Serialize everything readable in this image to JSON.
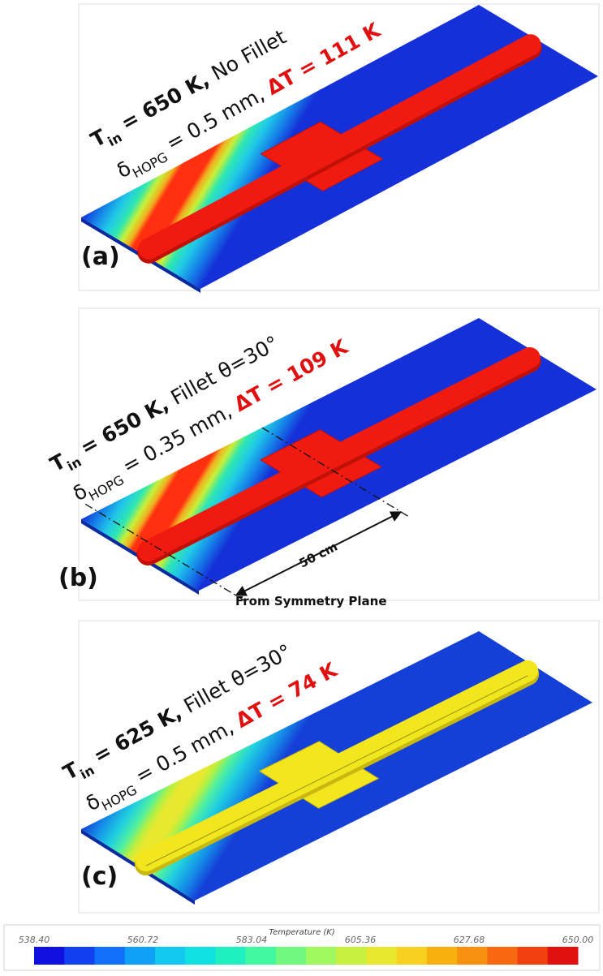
{
  "panels": [
    {
      "label": "(a)",
      "line1": {
        "t": "T",
        "t_sub": "in",
        "t_rest": " = 650 K,",
        "note": " No Fillet"
      },
      "line2": {
        "delta": "δ",
        "delta_sub": "HOPG",
        "thickness": " = 0.5 mm, ",
        "dt": "ΔT = 111 K"
      }
    },
    {
      "label": "(b)",
      "line1": {
        "t": "T",
        "t_sub": "in",
        "t_rest": " = 650 K,",
        "note": " Fillet θ=30°"
      },
      "line2": {
        "delta": "δ",
        "delta_sub": "HOPG",
        "thickness": " = 0.35 mm, ",
        "dt": "ΔT = 109 K"
      }
    },
    {
      "label": "(c)",
      "line1": {
        "t": "T",
        "t_sub": "in",
        "t_rest": " = 625 K,",
        "note": " Fillet θ=30°"
      },
      "line2": {
        "delta": "δ",
        "delta_sub": "HOPG",
        "thickness": " = 0.5 mm, ",
        "dt": "ΔT = 74 K"
      }
    }
  ],
  "annotations": {
    "distance": "50 cm",
    "reference": "From Symmetry Plane"
  },
  "colorbar": {
    "title": "Temperature (K)",
    "ticks": [
      "538.40",
      "560.72",
      "583.04",
      "605.36",
      "627.68",
      "650.00"
    ]
  }
}
